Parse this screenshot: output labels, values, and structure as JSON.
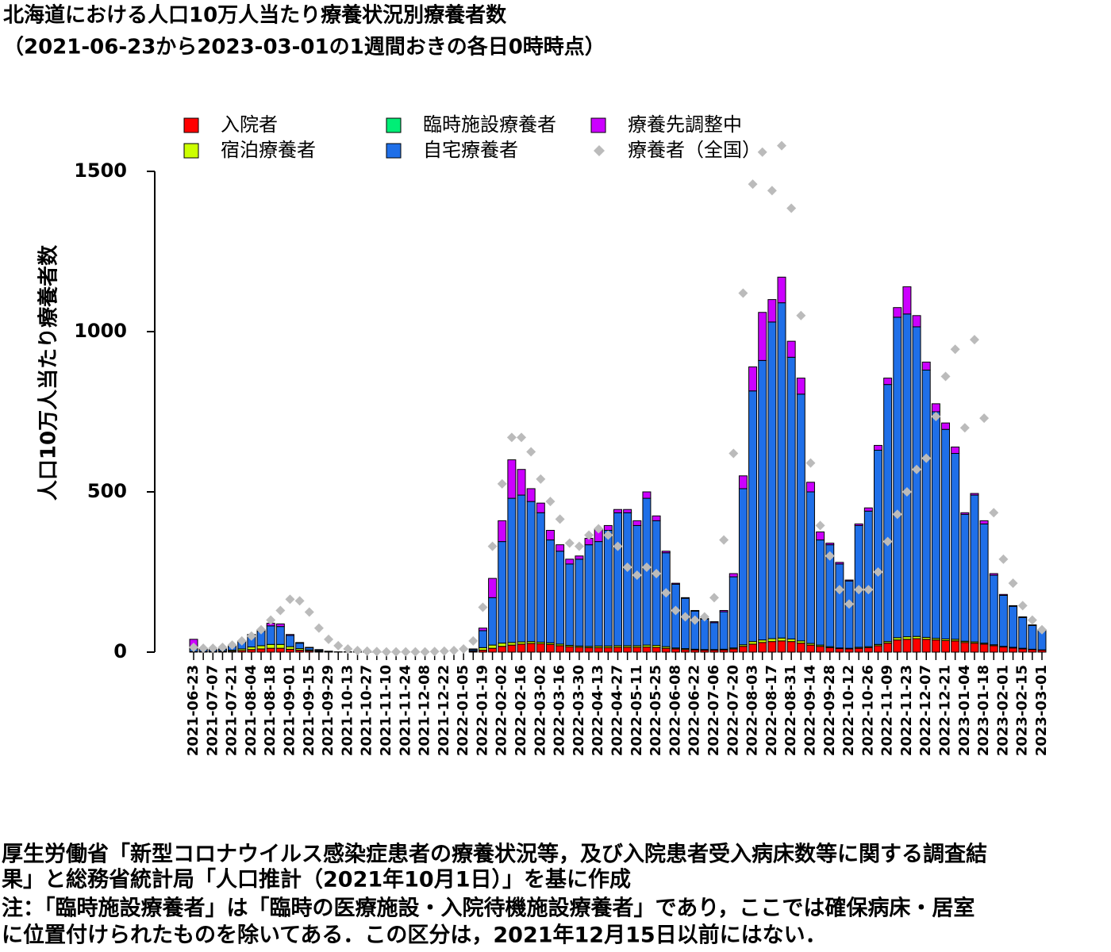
{
  "chart_data": {
    "type": "bar",
    "stacked": true,
    "title": "北海道における人口10万人当たり療養状況別療養者数",
    "subtitle": "（2021-06-23から2023-03-01の1週間おきの各日0時時点）",
    "ylabel": "人口10万人当たり療養者数",
    "categories": [
      "2021-06-23",
      null,
      "2021-07-07",
      null,
      "2021-07-21",
      null,
      "2021-08-04",
      null,
      "2021-08-18",
      null,
      "2021-09-01",
      null,
      "2021-09-15",
      null,
      "2021-09-29",
      null,
      "2021-10-13",
      null,
      "2021-10-27",
      null,
      "2021-11-10",
      null,
      "2021-11-24",
      null,
      "2021-12-08",
      null,
      "2021-12-22",
      null,
      "2022-01-05",
      null,
      "2022-01-19",
      null,
      "2022-02-02",
      null,
      "2022-02-16",
      null,
      "2022-03-02",
      null,
      "2022-03-16",
      null,
      "2022-03-30",
      null,
      "2022-04-13",
      null,
      "2022-04-27",
      null,
      "2022-05-11",
      null,
      "2022-05-25",
      null,
      "2022-06-08",
      null,
      "2022-06-22",
      null,
      "2022-07-06",
      null,
      "2022-07-20",
      null,
      "2022-08-03",
      null,
      "2022-08-17",
      null,
      "2022-08-31",
      null,
      "2022-09-14",
      null,
      "2022-09-28",
      null,
      "2022-10-12",
      null,
      "2022-10-26",
      null,
      "2022-11-09",
      null,
      "2022-11-23",
      null,
      "2022-12-07",
      null,
      "2022-12-21",
      null,
      "2023-01-04",
      null,
      "2023-01-18",
      null,
      "2023-02-01",
      null,
      "2023-02-15",
      null,
      "2023-03-01"
    ],
    "series": [
      {
        "name": "入院者",
        "color": "#ff0000",
        "values": [
          1,
          1,
          1,
          2,
          3,
          5,
          8,
          10,
          12,
          12,
          9,
          6,
          4,
          2,
          1,
          0,
          0,
          0,
          0,
          0,
          0,
          0,
          0,
          0,
          0,
          0,
          0,
          0,
          0,
          3,
          6,
          12,
          18,
          22,
          25,
          27,
          26,
          24,
          20,
          17,
          15,
          14,
          14,
          14,
          15,
          15,
          15,
          16,
          15,
          12,
          10,
          8,
          7,
          6,
          6,
          7,
          10,
          18,
          25,
          30,
          33,
          35,
          33,
          28,
          22,
          18,
          14,
          11,
          10,
          12,
          14,
          20,
          28,
          38,
          40,
          42,
          40,
          38,
          36,
          35,
          30,
          28,
          25,
          20,
          16,
          13,
          10,
          8,
          6
        ]
      },
      {
        "name": "宿泊療養者",
        "color": "#ccff00",
        "values": [
          1,
          1,
          1,
          2,
          3,
          5,
          8,
          10,
          12,
          12,
          8,
          5,
          3,
          2,
          1,
          0,
          0,
          0,
          0,
          0,
          0,
          0,
          0,
          0,
          0,
          0,
          0,
          0,
          0,
          2,
          8,
          10,
          10,
          8,
          7,
          6,
          5,
          5,
          5,
          4,
          4,
          4,
          5,
          5,
          5,
          5,
          5,
          6,
          6,
          5,
          3,
          3,
          2,
          2,
          2,
          2,
          3,
          5,
          8,
          8,
          9,
          9,
          8,
          7,
          5,
          4,
          3,
          2,
          2,
          3,
          3,
          4,
          5,
          7,
          8,
          7,
          6,
          5,
          5,
          5,
          4,
          4,
          3,
          3,
          2,
          2,
          2,
          1,
          1
        ]
      },
      {
        "name": "臨時施設療養者",
        "color": "#00ee76",
        "values": [
          null,
          null,
          null,
          null,
          null,
          null,
          null,
          null,
          null,
          null,
          null,
          null,
          null,
          null,
          null,
          null,
          null,
          null,
          null,
          null,
          null,
          null,
          null,
          null,
          null,
          null,
          0,
          0,
          0,
          0,
          0,
          0,
          0,
          0,
          0,
          0,
          0,
          0,
          0,
          0,
          0,
          0,
          0,
          0,
          0,
          0,
          0,
          0,
          0,
          0,
          0,
          0,
          0,
          0,
          0,
          0,
          0,
          0,
          0,
          0,
          0,
          0,
          0,
          0,
          0,
          0,
          0,
          0,
          0,
          0,
          0,
          0,
          0,
          0,
          0,
          0,
          0,
          0,
          0,
          0,
          0,
          0,
          0,
          0,
          0,
          0,
          0,
          0,
          0
        ]
      },
      {
        "name": "自宅療養者",
        "color": "#1f6fe8",
        "values": [
          8,
          6,
          5,
          5,
          12,
          22,
          35,
          45,
          58,
          56,
          35,
          17,
          7,
          3,
          1,
          1,
          1,
          1,
          1,
          1,
          1,
          1,
          1,
          1,
          1,
          0,
          0,
          0,
          0,
          4,
          53,
          148,
          317,
          450,
          458,
          437,
          404,
          321,
          290,
          254,
          271,
          317,
          326,
          361,
          415,
          415,
          375,
          458,
          389,
          293,
          199,
          157,
          119,
          95,
          84,
          117,
          222,
          487,
          782,
          872,
          988,
          1046,
          879,
          770,
          473,
          328,
          318,
          262,
          210,
          380,
          423,
          606,
          802,
          1000,
          1007,
          966,
          834,
          707,
          654,
          580,
          396,
          458,
          372,
          217,
          159,
          128,
          96,
          74,
          61
        ]
      },
      {
        "name": "療養先調整中",
        "color": "#cc00ff",
        "values": [
          30,
          2,
          1,
          1,
          2,
          3,
          4,
          5,
          8,
          8,
          3,
          2,
          1,
          1,
          0,
          0,
          0,
          0,
          0,
          0,
          0,
          0,
          0,
          0,
          0,
          0,
          0,
          0,
          0,
          1,
          8,
          60,
          65,
          120,
          80,
          40,
          30,
          30,
          20,
          15,
          10,
          20,
          40,
          15,
          10,
          10,
          15,
          20,
          15,
          5,
          3,
          2,
          2,
          2,
          3,
          4,
          10,
          40,
          75,
          150,
          70,
          80,
          50,
          50,
          30,
          25,
          5,
          5,
          3,
          5,
          10,
          15,
          20,
          30,
          85,
          35,
          25,
          25,
          20,
          20,
          5,
          5,
          10,
          5,
          3,
          2,
          2,
          2,
          2
        ]
      },
      {
        "name": "療養者（全国）",
        "type": "scatter",
        "color": "#bbbbbb",
        "values": [
          15,
          12,
          12,
          15,
          22,
          35,
          50,
          70,
          100,
          130,
          165,
          160,
          125,
          75,
          40,
          20,
          10,
          5,
          3,
          2,
          1,
          1,
          1,
          1,
          1,
          2,
          3,
          5,
          10,
          35,
          140,
          330,
          525,
          670,
          670,
          625,
          540,
          470,
          415,
          340,
          330,
          365,
          385,
          365,
          330,
          265,
          240,
          265,
          245,
          185,
          130,
          110,
          100,
          110,
          170,
          350,
          620,
          1120,
          1460,
          1560,
          1440,
          1580,
          1385,
          1050,
          590,
          395,
          300,
          195,
          150,
          195,
          195,
          250,
          345,
          430,
          500,
          570,
          605,
          735,
          860,
          945,
          700,
          975,
          730,
          435,
          290,
          215,
          145,
          100,
          70
        ]
      }
    ],
    "ylim": [
      0,
      1500
    ],
    "yticks": [
      0,
      500,
      1000,
      1500
    ],
    "source": [
      "厚生労働省「新型コロナウイルス感染症患者の療養状況等，及び入院患者受入病床数等に関する調査結",
      "果」と総務省統計局「人口推計（2021年10月1日）」を基に作成",
      "注：「臨時施設療養者」は「臨時の医療施設・入院待機施設療養者」であり，ここでは確保病床・居室",
      "に位置付けられたものを除いてある．この区分は，2021年12月15日以前にはない．"
    ]
  }
}
